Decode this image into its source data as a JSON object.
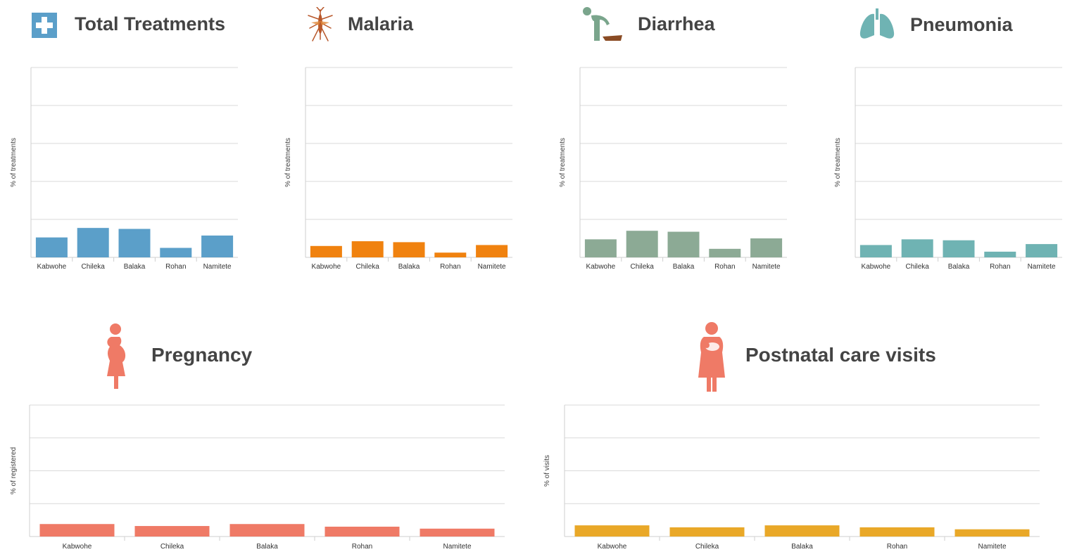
{
  "colors": {
    "total": "#5b9fc9",
    "malaria": "#f0820f",
    "diarrhea": "#8caa95",
    "pneumonia": "#6fb3b3",
    "pregnancy": "#ef7a66",
    "postnatal": "#e9a828",
    "title_text": "#444444"
  },
  "icons": {
    "total": "medical-cross-icon",
    "malaria": "mosquito-icon",
    "diarrhea": "person-vomiting-icon",
    "pneumonia": "lungs-icon",
    "pregnancy": "pregnant-woman-icon",
    "postnatal": "mother-with-baby-icon"
  },
  "chart_data": [
    {
      "id": "total",
      "type": "bar",
      "title": "Total Treatments",
      "ylabel": "% of treatments",
      "categories": [
        "Kabwohe",
        "Chileka",
        "Balaka",
        "Rohan",
        "Namitete"
      ],
      "values": [
        10.5,
        15.5,
        15,
        5,
        11.5
      ],
      "ylim": [
        0,
        100
      ],
      "grid": true
    },
    {
      "id": "malaria",
      "type": "bar",
      "title": "Malaria",
      "ylabel": "% of treatments",
      "categories": [
        "Kabwohe",
        "Chileka",
        "Balaka",
        "Rohan",
        "Namitete"
      ],
      "values": [
        6,
        8.5,
        8,
        2.5,
        6.5
      ],
      "ylim": [
        0,
        100
      ],
      "grid": true
    },
    {
      "id": "diarrhea",
      "type": "bar",
      "title": "Diarrhea",
      "ylabel": "% of treatments",
      "categories": [
        "Kabwohe",
        "Chileka",
        "Balaka",
        "Rohan",
        "Namitete"
      ],
      "values": [
        9.5,
        14,
        13.5,
        4.5,
        10
      ],
      "ylim": [
        0,
        100
      ],
      "grid": true
    },
    {
      "id": "pneumonia",
      "type": "bar",
      "title": "Pneumonia",
      "ylabel": "% of treatments",
      "categories": [
        "Kabwohe",
        "Chileka",
        "Balaka",
        "Rohan",
        "Namitete"
      ],
      "values": [
        6.5,
        9.5,
        9,
        3,
        7
      ],
      "ylim": [
        0,
        100
      ],
      "grid": true
    },
    {
      "id": "pregnancy",
      "type": "bar",
      "title": "Pregnancy",
      "ylabel": "% of registered",
      "categories": [
        "Kabwohe",
        "Chileka",
        "Balaka",
        "Rohan",
        "Namitete"
      ],
      "values": [
        9.5,
        8,
        9.5,
        7.5,
        6
      ],
      "ylim": [
        0,
        100
      ],
      "grid": true
    },
    {
      "id": "postnatal",
      "type": "bar",
      "title": "Postnatal care visits",
      "ylabel": "% of visits",
      "categories": [
        "Kabwohe",
        "Chileka",
        "Balaka",
        "Rohan",
        "Namitete"
      ],
      "values": [
        8.5,
        7,
        8.5,
        7,
        5.5
      ],
      "ylim": [
        0,
        100
      ],
      "grid": true
    }
  ]
}
